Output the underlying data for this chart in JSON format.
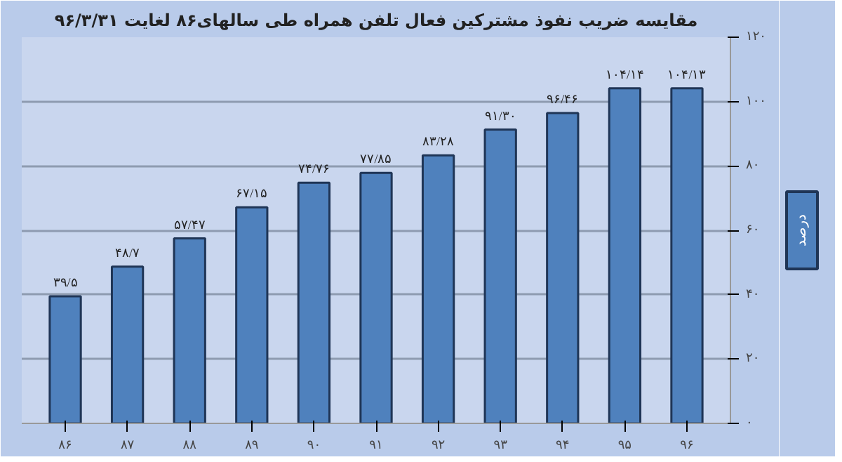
{
  "chart_data": {
    "type": "bar",
    "title": "مقایسه ضریب نفوذ مشترکین فعال تلفن همراه طی سالهای۸۶ لغایت ۹۶/۳/۳۱",
    "categories": [
      "۸۶",
      "۸۷",
      "۸۸",
      "۸۹",
      "۹۰",
      "۹۱",
      "۹۲",
      "۹۳",
      "۹۴",
      "۹۵",
      "۹۶"
    ],
    "series": [
      {
        "name": "درصد",
        "color": "#4f81bd",
        "values": [
          39.5,
          48.7,
          57.47,
          67.15,
          74.76,
          77.85,
          83.28,
          91.3,
          96.46,
          104.14,
          104.13
        ],
        "value_labels": [
          "۳۹/۵",
          "۴۸/۷",
          "۵۷/۴۷",
          "۶۷/۱۵",
          "۷۴/۷۶",
          "۷۷/۸۵",
          "۸۳/۲۸",
          "۹۱/۳۰",
          "۹۶/۴۶",
          "۱۰۴/۱۴",
          "۱۰۴/۱۳"
        ]
      }
    ],
    "ylim": [
      0,
      120
    ],
    "yticks": [
      {
        "value": 0,
        "label": "۰"
      },
      {
        "value": 20,
        "label": "۲۰"
      },
      {
        "value": 40,
        "label": "۴۰"
      },
      {
        "value": 60,
        "label": "۶۰"
      },
      {
        "value": 80,
        "label": "۸۰"
      },
      {
        "value": 100,
        "label": "۱۰۰"
      },
      {
        "value": 120,
        "label": "۱۲۰"
      }
    ],
    "grid": "y",
    "legend": "right"
  }
}
